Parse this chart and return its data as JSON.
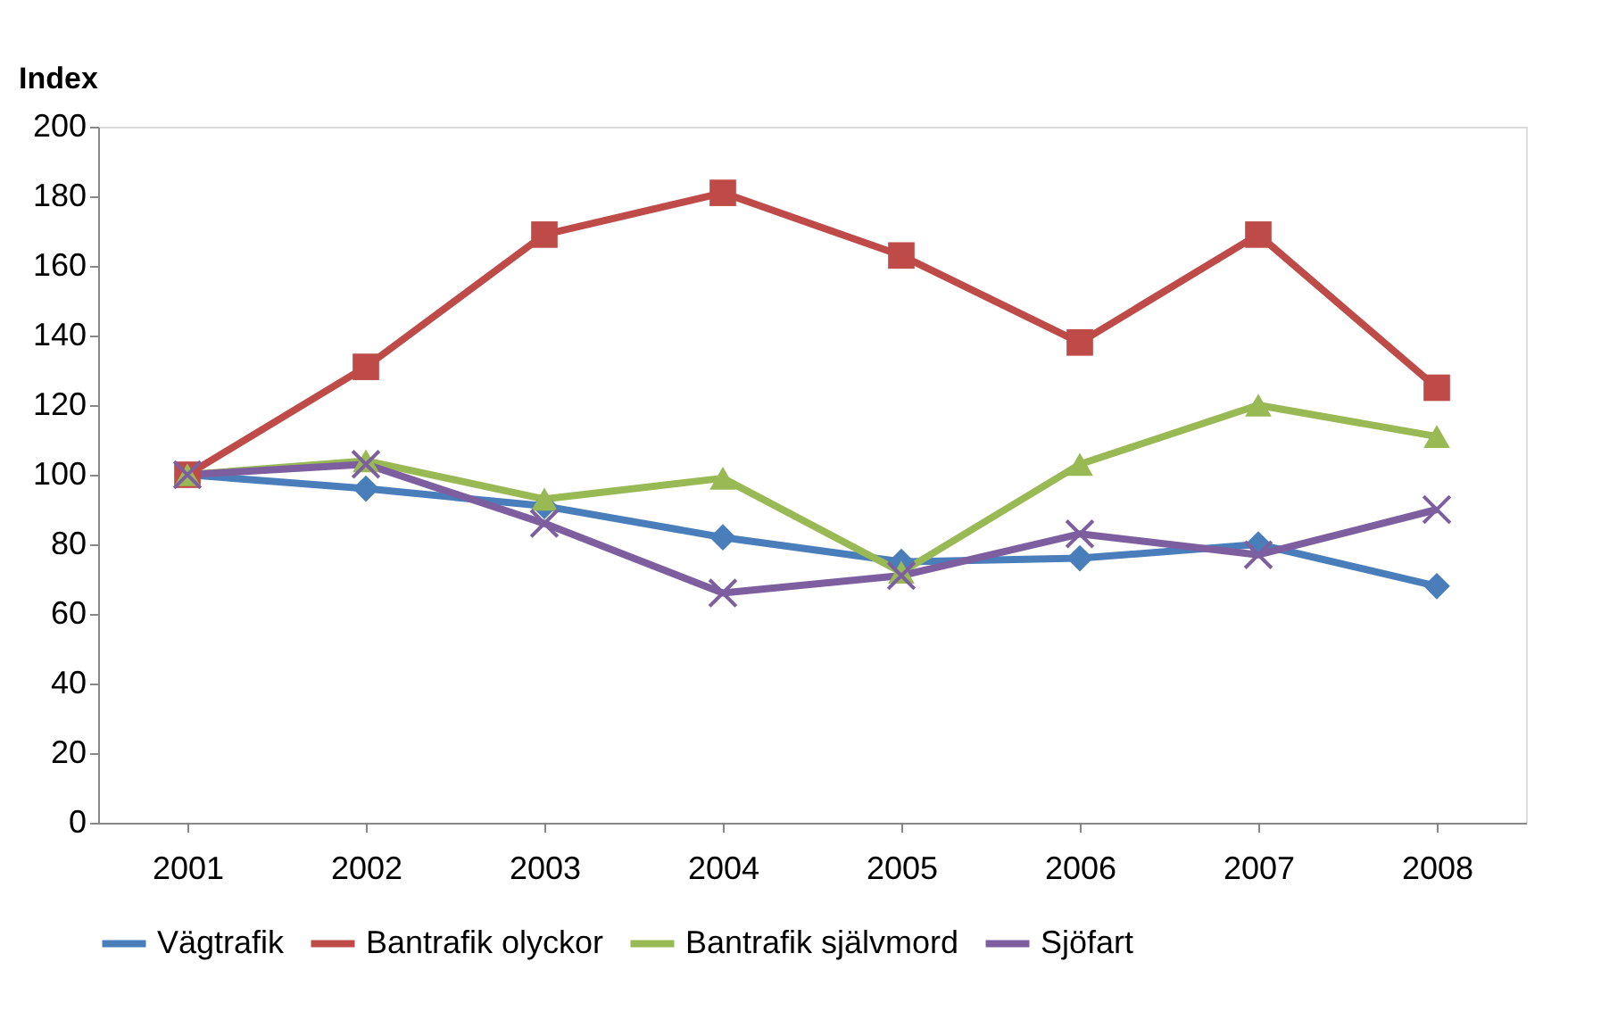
{
  "chart_data": {
    "type": "line",
    "ylabel": "Index",
    "categories": [
      "2001",
      "2002",
      "2003",
      "2004",
      "2005",
      "2006",
      "2007",
      "2008"
    ],
    "ylim": [
      0,
      200
    ],
    "yticks": [
      0,
      20,
      40,
      60,
      80,
      100,
      120,
      140,
      160,
      180,
      200
    ],
    "grid": false,
    "legend": "bottom",
    "line_style": "solid",
    "series": [
      {
        "name": "Vägtrafik",
        "color": "#4a7ebb",
        "marker": "diamond",
        "values": [
          100,
          96,
          91,
          82,
          75,
          76,
          80,
          68
        ]
      },
      {
        "name": "Bantrafik olyckor",
        "color": "#be4b48",
        "marker": "square",
        "values": [
          100,
          131,
          169,
          181,
          163,
          138,
          169,
          125
        ]
      },
      {
        "name": "Bantrafik självmord",
        "color": "#98b954",
        "marker": "triangle",
        "values": [
          100,
          104,
          93,
          99,
          72,
          103,
          120,
          111
        ]
      },
      {
        "name": "Sjöfart",
        "color": "#7d5fa0",
        "marker": "cross",
        "values": [
          100,
          103,
          86,
          66,
          71,
          83,
          77,
          90
        ]
      }
    ]
  }
}
